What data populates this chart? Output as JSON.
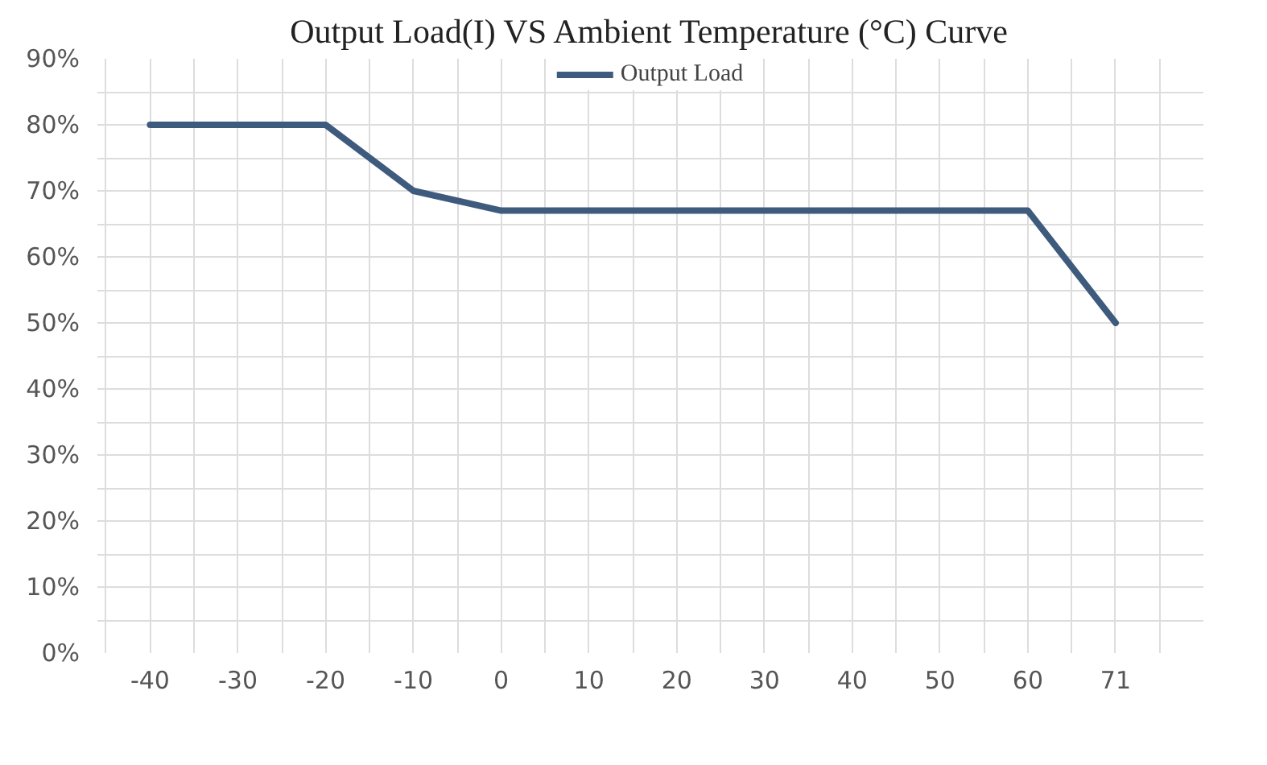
{
  "chart_data": {
    "type": "line",
    "title": "Output Load(I) VS Ambient Temperature (°C) Curve",
    "categories": [
      "-40",
      "-30",
      "-20",
      "-10",
      "0",
      "10",
      "20",
      "30",
      "40",
      "50",
      "60",
      "71"
    ],
    "series": [
      {
        "name": "Output Load",
        "color": "#3e5b7d",
        "values": [
          80,
          80,
          80,
          70,
          67,
          67,
          67,
          67,
          67,
          67,
          67,
          50
        ]
      }
    ],
    "ylim": [
      0,
      90
    ],
    "yticks": [
      {
        "value": 0,
        "label": "0%"
      },
      {
        "value": 10,
        "label": "10%"
      },
      {
        "value": 20,
        "label": "20%"
      },
      {
        "value": 30,
        "label": "30%"
      },
      {
        "value": 40,
        "label": "40%"
      },
      {
        "value": 50,
        "label": "50%"
      },
      {
        "value": 60,
        "label": "60%"
      },
      {
        "value": 70,
        "label": "70%"
      },
      {
        "value": 80,
        "label": "80%"
      },
      {
        "value": 90,
        "label": "90%"
      }
    ],
    "grid": true,
    "legend": "top",
    "marker": "none",
    "line_style": "solid"
  }
}
